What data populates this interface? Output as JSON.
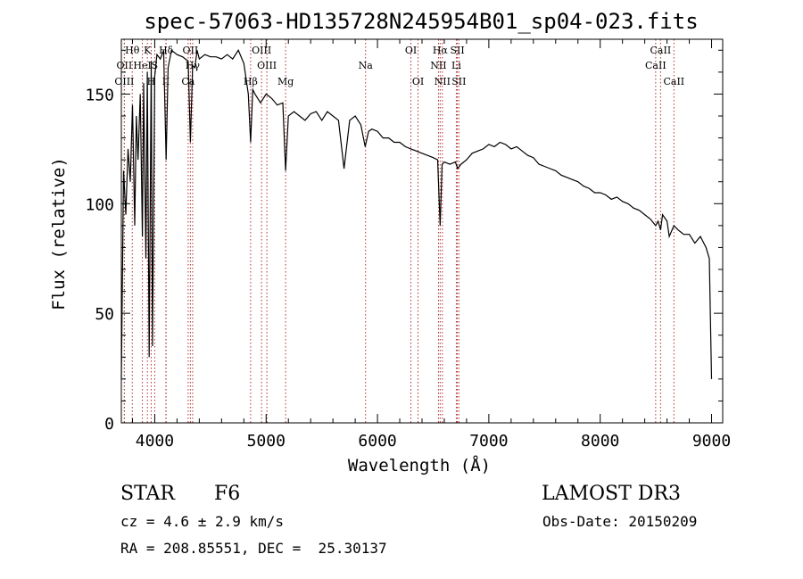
{
  "chart_data": {
    "type": "line",
    "title": "spec-57063-HD135728N245954B01_sp04-023.fits",
    "xlabel": "Wavelength (Å)",
    "ylabel": "Flux (relative)",
    "xlim": [
      3700,
      9100
    ],
    "ylim": [
      0,
      175
    ],
    "xticks": [
      4000,
      5000,
      6000,
      7000,
      8000,
      9000
    ],
    "yticks": [
      0,
      50,
      100,
      150
    ],
    "series": [
      {
        "name": "flux",
        "x": [
          3700,
          3720,
          3740,
          3760,
          3780,
          3800,
          3820,
          3835,
          3850,
          3870,
          3889,
          3900,
          3920,
          3933,
          3950,
          3968,
          3980,
          4000,
          4020,
          4050,
          4080,
          4102,
          4120,
          4150,
          4200,
          4250,
          4300,
          4320,
          4340,
          4360,
          4380,
          4400,
          4450,
          4500,
          4550,
          4600,
          4650,
          4700,
          4750,
          4800,
          4840,
          4861,
          4880,
          4900,
          4950,
          5000,
          5050,
          5100,
          5150,
          5175,
          5200,
          5250,
          5300,
          5350,
          5400,
          5450,
          5500,
          5550,
          5600,
          5650,
          5700,
          5750,
          5800,
          5850,
          5890,
          5920,
          5950,
          6000,
          6050,
          6100,
          6150,
          6200,
          6250,
          6300,
          6350,
          6400,
          6450,
          6500,
          6540,
          6563,
          6580,
          6600,
          6650,
          6700,
          6720,
          6750,
          6800,
          6850,
          6900,
          6950,
          7000,
          7050,
          7100,
          7150,
          7200,
          7250,
          7300,
          7350,
          7400,
          7450,
          7500,
          7550,
          7600,
          7650,
          7700,
          7750,
          7800,
          7850,
          7900,
          7950,
          8000,
          8050,
          8100,
          8150,
          8200,
          8250,
          8300,
          8350,
          8400,
          8450,
          8498,
          8520,
          8542,
          8560,
          8600,
          8620,
          8662,
          8700,
          8750,
          8800,
          8850,
          8900,
          8950,
          8980,
          9000
        ],
        "values": [
          20,
          115,
          95,
          125,
          110,
          145,
          90,
          140,
          120,
          150,
          85,
          155,
          75,
          160,
          30,
          165,
          35,
          158,
          168,
          166,
          170,
          120,
          162,
          170,
          168,
          167,
          165,
          128,
          163,
          162,
          170,
          166,
          168,
          167,
          167,
          166,
          168,
          166,
          170,
          164,
          150,
          128,
          152,
          150,
          146,
          150,
          148,
          145,
          146,
          115,
          140,
          142,
          140,
          138,
          141,
          142,
          138,
          142,
          140,
          138,
          116,
          138,
          140,
          136,
          126,
          133,
          134,
          133,
          130,
          130,
          128,
          128,
          126,
          125,
          124,
          123,
          122,
          121,
          120,
          90,
          118,
          119,
          118,
          119,
          116,
          118,
          120,
          123,
          124,
          125,
          127,
          126,
          128,
          127,
          125,
          126,
          124,
          122,
          121,
          118,
          117,
          116,
          115,
          113,
          112,
          111,
          110,
          108,
          107,
          105,
          105,
          104,
          102,
          103,
          101,
          100,
          98,
          97,
          95,
          93,
          90,
          92,
          88,
          95,
          92,
          85,
          90,
          88,
          86,
          86,
          82,
          85,
          80,
          75,
          20
        ]
      }
    ],
    "lines": [
      {
        "label": "Hθ",
        "wavelength": 3798,
        "row": 0
      },
      {
        "label": "OII",
        "wavelength": 3727,
        "row": 1
      },
      {
        "label": "OIII",
        "wavelength": 3727,
        "row": 2
      },
      {
        "label": "K",
        "wavelength": 3934,
        "row": 0
      },
      {
        "label": "HeI",
        "wavelength": 3889,
        "row": 1
      },
      {
        "label": "H",
        "wavelength": 3968,
        "row": 2
      },
      {
        "label": "Hδ",
        "wavelength": 4102,
        "row": 0
      },
      {
        "label": "S",
        "wavelength": 4000,
        "row": 1
      },
      {
        "label": "II",
        "wavelength": 4100,
        "row": 2
      },
      {
        "label": "OII",
        "wavelength": 4320,
        "row": 0
      },
      {
        "label": "Hγ",
        "wavelength": 4340,
        "row": 1
      },
      {
        "label": "Ca",
        "wavelength": 4300,
        "row": 2
      },
      {
        "label": "OIII",
        "wavelength": 4959,
        "row": 0
      },
      {
        "label": "OIII",
        "wavelength": 5007,
        "row": 1
      },
      {
        "label": "Hβ",
        "wavelength": 4861,
        "row": 2
      },
      {
        "label": "Mg",
        "wavelength": 5175,
        "row": 2
      },
      {
        "label": "Na",
        "wavelength": 5893,
        "row": 1
      },
      {
        "label": "OI",
        "wavelength": 6300,
        "row": 0
      },
      {
        "label": "OI",
        "wavelength": 6364,
        "row": 2
      },
      {
        "label": "Hα",
        "wavelength": 6563,
        "row": 0
      },
      {
        "label": "SII",
        "wavelength": 6717,
        "row": 0
      },
      {
        "label": "NII",
        "wavelength": 6548,
        "row": 1
      },
      {
        "label": "Li",
        "wavelength": 6708,
        "row": 1
      },
      {
        "label": "NII",
        "wavelength": 6583,
        "row": 2
      },
      {
        "label": "SII",
        "wavelength": 6731,
        "row": 2
      },
      {
        "label": "CaII",
        "wavelength": 8542,
        "row": 0
      },
      {
        "label": "CaII",
        "wavelength": 8498,
        "row": 1
      },
      {
        "label": "CaII",
        "wavelength": 8662,
        "row": 2
      }
    ],
    "line_color": "#b03030"
  },
  "info": {
    "object": "STAR",
    "subclass": "F6",
    "survey": "LAMOST DR3",
    "cz": "cz = 4.6 ± 2.9 km/s",
    "obs_date": "Obs-Date: 20150209",
    "coords": "RA = 208.85551, DEC =  25.30137"
  }
}
